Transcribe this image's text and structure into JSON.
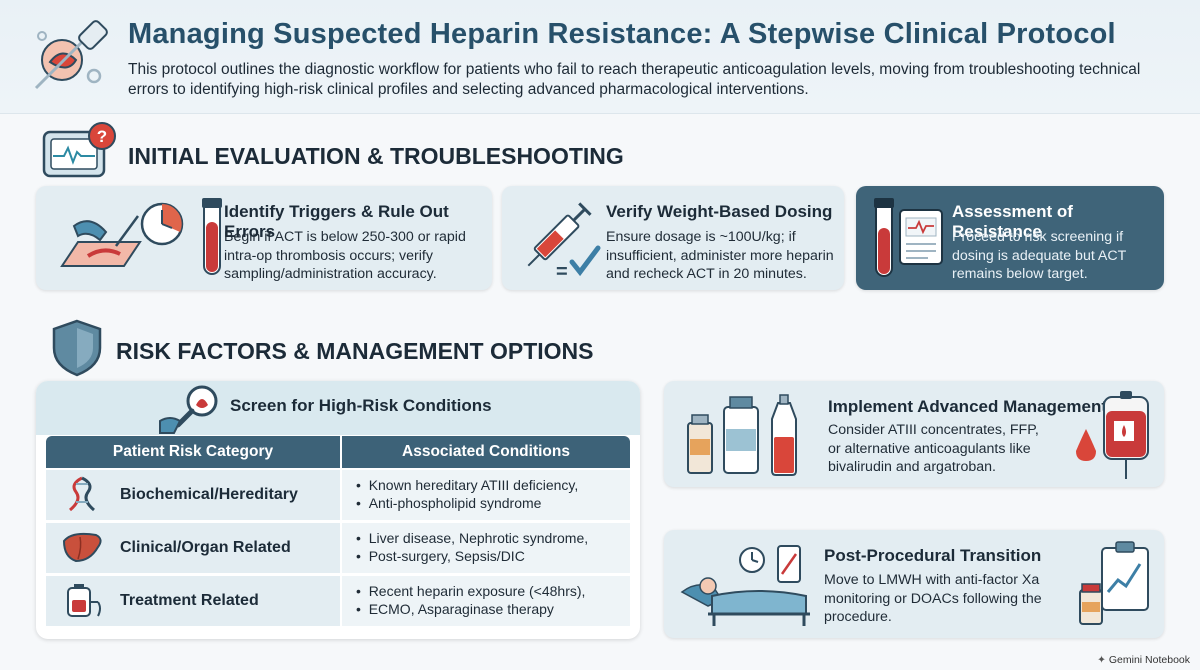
{
  "header": {
    "title": "Managing Suspected Heparin Resistance: A Stepwise Clinical Protocol",
    "subtitle": "This protocol outlines the diagnostic workflow for patients who fail to reach therapeutic anticoagulation levels, moving from troubleshooting technical errors to identifying high-risk clinical profiles and selecting advanced pharmacological interventions."
  },
  "section1": {
    "title": "INITIAL EVALUATION & TROUBLESHOOTING",
    "cards": [
      {
        "title": "Identify Triggers & Rule Out Errors",
        "lines": [
          "Begin if ACT is below 250-300 or rapid",
          "intra-op thrombosis occurs; verify",
          "sampling/administration accuracy."
        ]
      },
      {
        "title": "Verify Weight-Based Dosing",
        "lines": [
          "Ensure dosage is ~100U/kg; if",
          "insufficient, administer more heparin",
          "and recheck ACT in 20 minutes."
        ]
      },
      {
        "title": "Assessment of Resistance",
        "lines": [
          "Proceed to risk screening if",
          "dosing is adequate but ACT",
          "remains below target."
        ]
      }
    ]
  },
  "section2": {
    "title": "RISK FACTORS & MANAGEMENT OPTIONS",
    "screen_title": "Screen for High-Risk Conditions",
    "table": {
      "headers": [
        "Patient Risk Category",
        "Associated Conditions"
      ],
      "rows": [
        {
          "category": "Biochemical/Hereditary",
          "conditions": [
            "Known hereditary ATIII deficiency,",
            "Anti-phospholipid syndrome"
          ]
        },
        {
          "category": "Clinical/Organ Related",
          "conditions": [
            "Liver disease, Nephrotic syndrome,",
            "Post-surgery, Sepsis/DIC"
          ]
        },
        {
          "category": "Treatment Related",
          "conditions": [
            "Recent heparin exposure (<48hrs),",
            "ECMO, Asparaginase therapy"
          ]
        }
      ]
    },
    "management": {
      "title": "Implement Advanced Management",
      "lines": [
        "Consider ATIII concentrates, FFP,",
        "or alternative anticoagulants like",
        "bivalirudin and argatroban."
      ]
    },
    "transition": {
      "title": "Post-Procedural Transition",
      "lines": [
        "Move to LMWH with anti-factor Xa",
        "monitoring or DOACs following the",
        "procedure."
      ]
    }
  },
  "footer": {
    "brand": "Gemini Notebook"
  },
  "colors": {
    "title": "#27506a",
    "dark_card": "#3f6479",
    "table_header": "#3d6278",
    "accent_red": "#c93a3a",
    "light_card": "#e3edf2"
  }
}
